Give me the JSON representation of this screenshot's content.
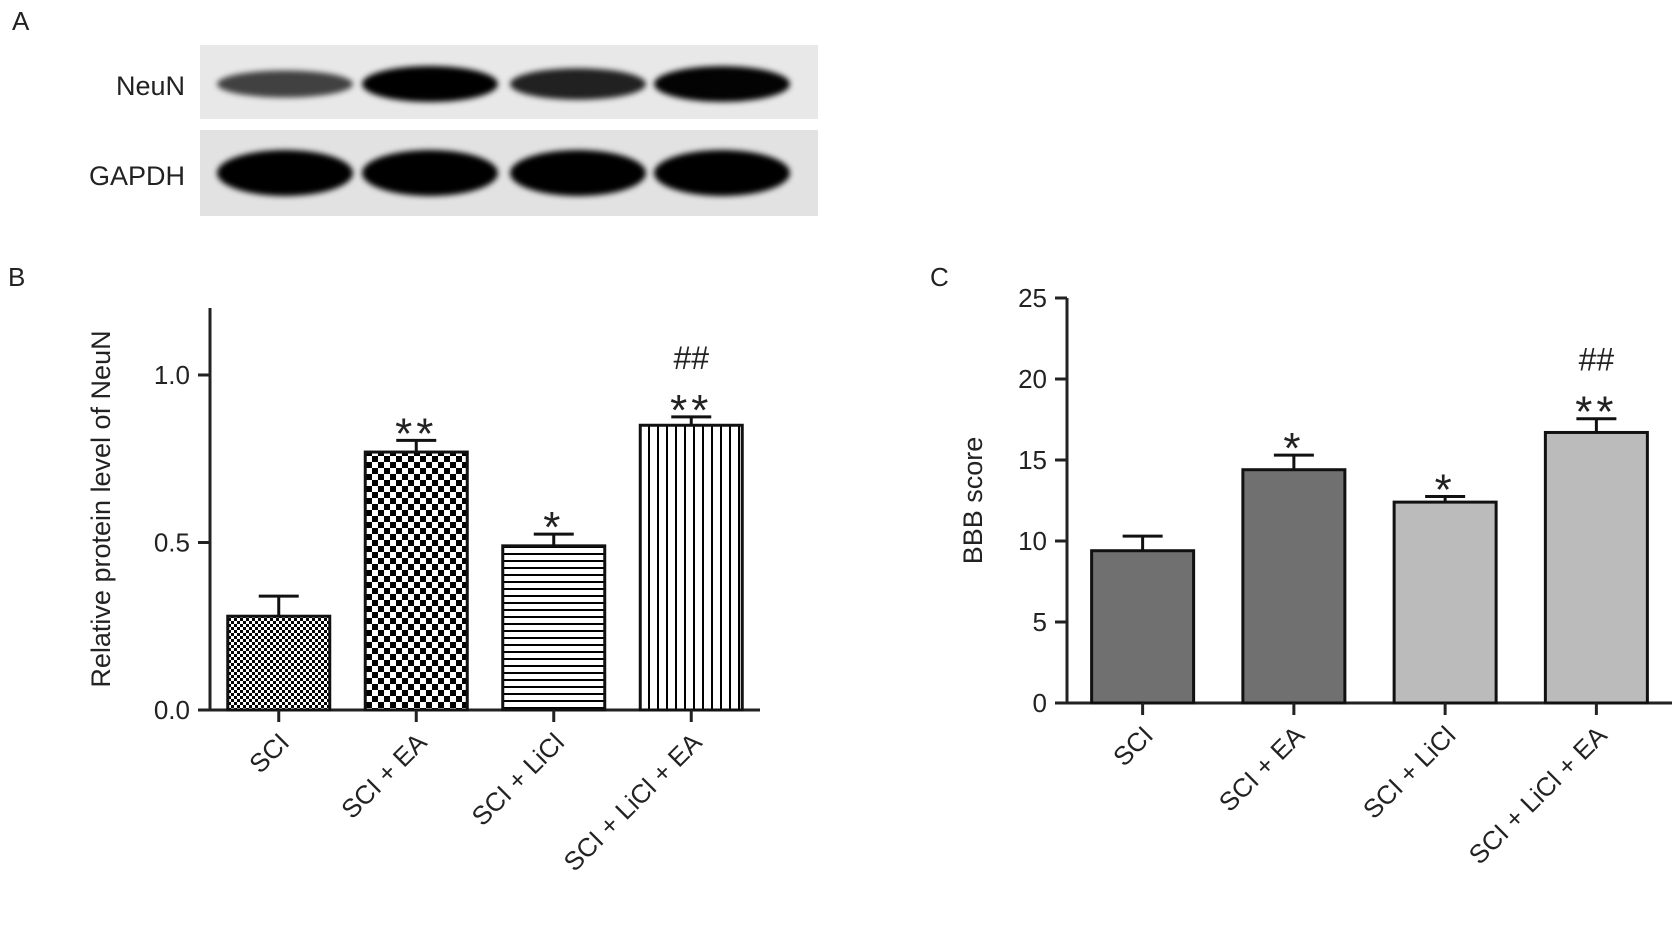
{
  "panels": {
    "a": "A",
    "b": "B",
    "c": "C"
  },
  "blot": {
    "rows": [
      {
        "label": "NeuN",
        "intensities": [
          0.45,
          1.0,
          0.72,
          0.98
        ]
      },
      {
        "label": "GAPDH",
        "intensities": [
          1.0,
          1.0,
          1.0,
          1.0
        ]
      }
    ]
  },
  "chart_data": [
    {
      "type": "bar",
      "panel": "B",
      "categories": [
        "SCI",
        "SCI + EA",
        "SCI + LiCl",
        "SCI + LiCl + EA"
      ],
      "values": [
        0.28,
        0.77,
        0.49,
        0.85
      ],
      "errors": [
        0.06,
        0.035,
        0.035,
        0.025
      ],
      "annotations": [
        [],
        [
          "**"
        ],
        [
          "*"
        ],
        [
          "**",
          "##"
        ]
      ],
      "patterns": [
        "fine-check",
        "check",
        "horizontal-lines",
        "vertical-lines"
      ],
      "ylabel": "Relative protein level of NeuN",
      "xlabel": "",
      "ylim": [
        0,
        1.2
      ],
      "yticks": [
        0.0,
        0.5,
        1.0
      ],
      "ytick_labels": [
        "0.0",
        "0.5",
        "1.0"
      ]
    },
    {
      "type": "bar",
      "panel": "C",
      "categories": [
        "SCI",
        "SCI + EA",
        "SCI + LiCl",
        "SCI + LiCl + EA"
      ],
      "values": [
        9.4,
        14.4,
        12.4,
        16.7
      ],
      "errors": [
        0.9,
        0.9,
        0.35,
        0.85
      ],
      "annotations": [
        [],
        [
          "*"
        ],
        [
          "*"
        ],
        [
          "**",
          "##"
        ]
      ],
      "colors": [
        "#707070",
        "#707070",
        "#bbbbbb",
        "#bbbbbb"
      ],
      "ylabel": "BBB score",
      "xlabel": "",
      "ylim": [
        0,
        25
      ],
      "yticks": [
        0,
        5,
        10,
        15,
        20,
        25
      ],
      "ytick_labels": [
        "0",
        "5",
        "10",
        "15",
        "20",
        "25"
      ]
    }
  ]
}
